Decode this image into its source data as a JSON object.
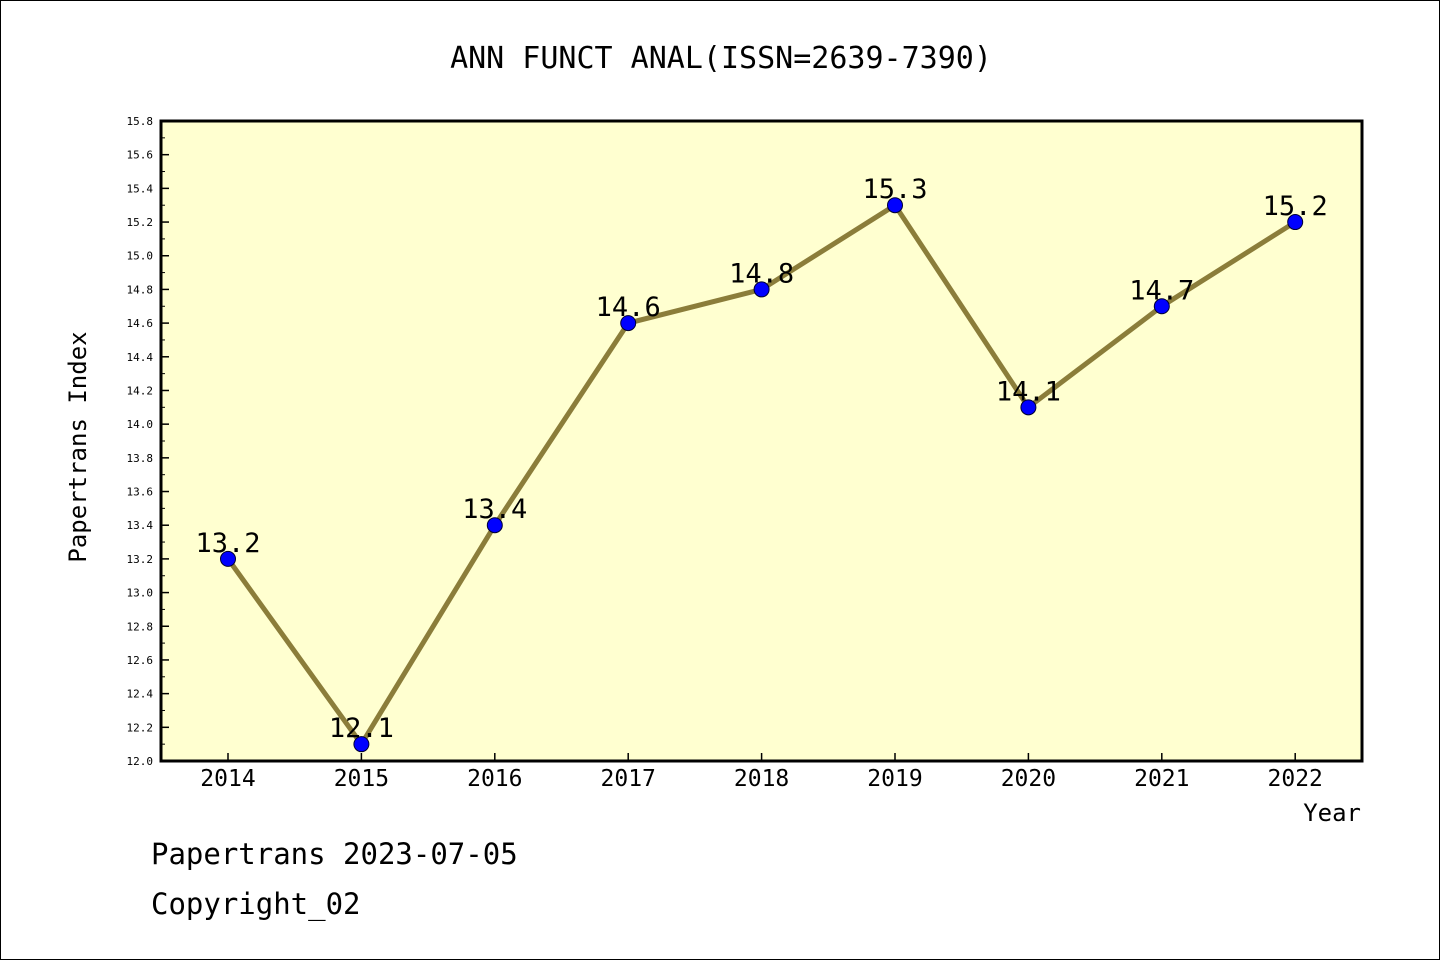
{
  "chart_data": {
    "type": "line",
    "title": "ANN FUNCT ANAL(ISSN=2639-7390)",
    "xlabel": "Year",
    "ylabel": "Papertrans Index",
    "categories": [
      "2014",
      "2015",
      "2016",
      "2017",
      "2018",
      "2019",
      "2020",
      "2021",
      "2022"
    ],
    "series": [
      {
        "values": [
          13.2,
          12.1,
          13.4,
          14.6,
          14.8,
          15.3,
          14.1,
          14.7,
          15.2
        ],
        "labels": [
          "13.2",
          "12.1",
          "13.4",
          "14.6",
          "14.8",
          "15.3",
          "14.1",
          "14.7",
          "15.2"
        ]
      }
    ],
    "ylim": [
      12.0,
      15.8
    ],
    "yticks": [
      "12.0",
      "12.2",
      "12.4",
      "12.6",
      "12.8",
      "13.0",
      "13.2",
      "13.4",
      "13.6",
      "13.8",
      "14.0",
      "14.2",
      "14.4",
      "14.6",
      "14.8",
      "15.0",
      "15.2",
      "15.4",
      "15.6",
      "15.8"
    ],
    "grid": false,
    "colors": {
      "plot_background": "#ffffd0",
      "line": "#8b7d3a",
      "marker": "#0000ff"
    }
  },
  "footer": {
    "line1": "Papertrans 2023-07-05",
    "line2": "Copyright_02"
  }
}
